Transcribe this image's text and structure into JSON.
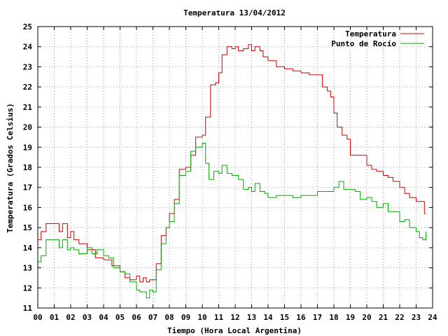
{
  "chart_data": {
    "type": "line",
    "title": "Temperatura 13/04/2012",
    "xlabel": "Tiempo (Hora Local Argentina)",
    "ylabel": "Temperatura (Grados Celsius)",
    "xlim": [
      0,
      24
    ],
    "ylim": [
      11,
      25
    ],
    "x_ticks": [
      "00",
      "01",
      "02",
      "03",
      "04",
      "05",
      "06",
      "07",
      "08",
      "09",
      "10",
      "11",
      "12",
      "13",
      "14",
      "15",
      "16",
      "17",
      "18",
      "19",
      "20",
      "21",
      "22",
      "23",
      "24"
    ],
    "y_ticks": [
      11,
      12,
      13,
      14,
      15,
      16,
      17,
      18,
      19,
      20,
      21,
      22,
      23,
      24,
      25
    ],
    "grid": true,
    "legend_position": "top-right",
    "series": [
      {
        "name": "Temperatura",
        "color": "#cc0000",
        "x": [
          0,
          0.2,
          0.5,
          1.0,
          1.3,
          1.5,
          1.8,
          2.0,
          2.2,
          2.5,
          3.0,
          3.5,
          4.0,
          4.5,
          5.0,
          5.3,
          5.6,
          6.0,
          6.2,
          6.4,
          6.6,
          6.8,
          7.0,
          7.2,
          7.5,
          7.8,
          8.0,
          8.3,
          8.6,
          9.0,
          9.3,
          9.6,
          10.0,
          10.2,
          10.5,
          10.8,
          11.0,
          11.2,
          11.5,
          11.8,
          12.0,
          12.2,
          12.5,
          12.8,
          13.0,
          13.2,
          13.5,
          13.7,
          14.0,
          14.5,
          15.0,
          15.5,
          16.0,
          16.5,
          17.0,
          17.3,
          17.6,
          17.8,
          18.0,
          18.2,
          18.5,
          18.8,
          19.0,
          19.3,
          19.6,
          20.0,
          20.3,
          20.6,
          21.0,
          21.3,
          21.6,
          22.0,
          22.3,
          22.6,
          23.0,
          23.3,
          23.5,
          23.6
        ],
        "y": [
          14.4,
          14.8,
          15.2,
          15.2,
          14.8,
          15.2,
          14.5,
          14.8,
          14.4,
          14.2,
          13.9,
          13.5,
          13.4,
          13.1,
          12.8,
          12.5,
          12.4,
          12.6,
          12.3,
          12.5,
          12.3,
          12.4,
          12.4,
          13.2,
          14.6,
          15.0,
          15.7,
          16.4,
          17.9,
          18.0,
          18.6,
          19.5,
          19.6,
          20.5,
          22.1,
          22.2,
          22.7,
          23.6,
          24.0,
          23.9,
          24.0,
          23.8,
          23.9,
          24.1,
          23.8,
          24.0,
          23.8,
          23.5,
          23.3,
          23.0,
          22.9,
          22.8,
          22.7,
          22.6,
          22.6,
          22.0,
          21.8,
          21.5,
          20.7,
          20.0,
          19.6,
          19.4,
          18.6,
          18.6,
          18.6,
          18.1,
          17.9,
          17.8,
          17.6,
          17.5,
          17.3,
          17.0,
          16.7,
          16.5,
          16.3,
          16.3,
          15.7,
          15.7
        ]
      },
      {
        "name": "Punto de Rocío",
        "color": "#00aa00",
        "x": [
          0,
          0.2,
          0.5,
          1.0,
          1.3,
          1.5,
          1.8,
          2.0,
          2.2,
          2.5,
          3.0,
          3.3,
          3.6,
          4.0,
          4.3,
          4.6,
          5.0,
          5.3,
          5.6,
          6.0,
          6.2,
          6.4,
          6.6,
          6.8,
          7.0,
          7.2,
          7.5,
          7.8,
          8.0,
          8.3,
          8.6,
          9.0,
          9.3,
          9.6,
          10.0,
          10.2,
          10.4,
          10.7,
          11.0,
          11.2,
          11.5,
          11.8,
          12.0,
          12.2,
          12.5,
          12.8,
          13.0,
          13.2,
          13.5,
          13.8,
          14.0,
          14.5,
          15.0,
          15.5,
          16.0,
          16.5,
          17.0,
          17.5,
          18.0,
          18.3,
          18.6,
          19.0,
          19.3,
          19.6,
          20.0,
          20.3,
          20.6,
          21.0,
          21.3,
          21.6,
          22.0,
          22.3,
          22.6,
          23.0,
          23.2,
          23.4,
          23.6
        ],
        "y": [
          13.3,
          13.6,
          14.4,
          14.4,
          14.0,
          14.4,
          13.9,
          14.0,
          13.9,
          13.7,
          14.0,
          13.7,
          13.9,
          13.6,
          13.5,
          13.0,
          12.8,
          12.7,
          12.3,
          11.9,
          11.8,
          11.8,
          11.5,
          11.9,
          11.8,
          12.9,
          14.2,
          15.0,
          15.3,
          16.2,
          17.6,
          17.8,
          18.8,
          19.0,
          19.2,
          18.2,
          17.4,
          17.8,
          17.7,
          18.1,
          17.7,
          17.6,
          17.6,
          17.4,
          16.9,
          17.0,
          16.8,
          17.2,
          16.8,
          16.7,
          16.5,
          16.6,
          16.6,
          16.5,
          16.6,
          16.6,
          16.8,
          16.8,
          17.0,
          17.3,
          16.9,
          16.9,
          16.8,
          16.4,
          16.5,
          16.3,
          16.0,
          16.2,
          15.8,
          15.8,
          15.3,
          15.4,
          15.0,
          14.8,
          14.5,
          14.4,
          14.8
        ]
      }
    ]
  }
}
